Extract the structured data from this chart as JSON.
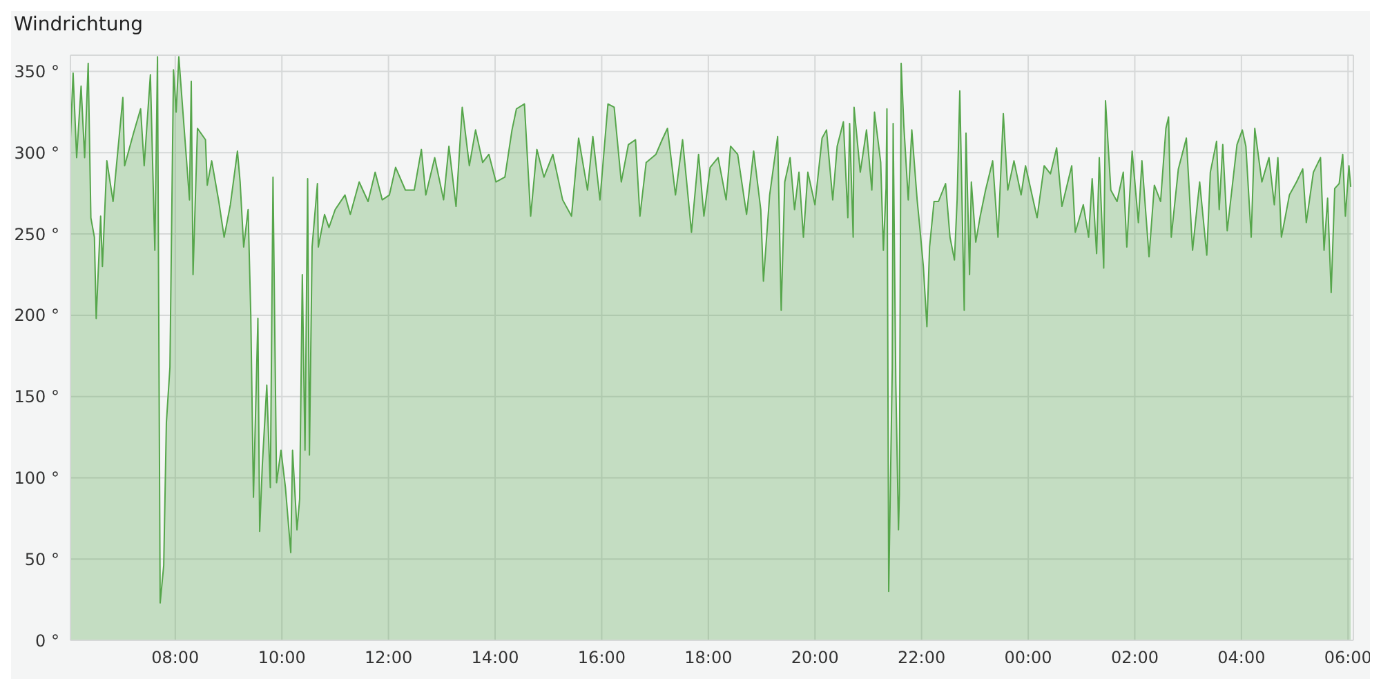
{
  "chart_data": {
    "type": "area",
    "title": "Windrichtung",
    "color": "#56a64b",
    "grid": true,
    "xlim": [
      "2000-01-01T06:02",
      "2000-01-02T06:06"
    ],
    "xticks": [
      {
        "value": "2000-01-01T08:00",
        "label": "08:00"
      },
      {
        "value": "2000-01-01T10:00",
        "label": "10:00"
      },
      {
        "value": "2000-01-01T12:00",
        "label": "12:00"
      },
      {
        "value": "2000-01-01T14:00",
        "label": "14:00"
      },
      {
        "value": "2000-01-01T16:00",
        "label": "16:00"
      },
      {
        "value": "2000-01-01T18:00",
        "label": "18:00"
      },
      {
        "value": "2000-01-01T20:00",
        "label": "20:00"
      },
      {
        "value": "2000-01-01T22:00",
        "label": "22:00"
      },
      {
        "value": "2000-01-02T00:00",
        "label": "00:00"
      },
      {
        "value": "2000-01-02T02:00",
        "label": "02:00"
      },
      {
        "value": "2000-01-02T04:00",
        "label": "04:00"
      },
      {
        "value": "2000-01-02T06:00",
        "label": "06:00"
      }
    ],
    "ylim": [
      0,
      360
    ],
    "yticks": [
      {
        "value": 0,
        "label": "0 °"
      },
      {
        "value": 50,
        "label": "50 °"
      },
      {
        "value": 100,
        "label": "100 °"
      },
      {
        "value": 150,
        "label": "150 °"
      },
      {
        "value": 200,
        "label": "200 °"
      },
      {
        "value": 250,
        "label": "250 °"
      },
      {
        "value": 300,
        "label": "300 °"
      },
      {
        "value": 350,
        "label": "350 °"
      }
    ],
    "x": [
      "2000-01-01T06:02",
      "2000-01-01T06:05",
      "2000-01-01T06:09",
      "2000-01-01T06:14",
      "2000-01-01T06:18",
      "2000-01-01T06:22",
      "2000-01-01T06:25",
      "2000-01-01T06:29",
      "2000-01-01T06:31",
      "2000-01-01T06:36",
      "2000-01-01T06:38",
      "2000-01-01T06:43",
      "2000-01-01T06:50",
      "2000-01-01T07:01",
      "2000-01-01T07:03",
      "2000-01-01T07:13",
      "2000-01-01T07:21",
      "2000-01-01T07:25",
      "2000-01-01T07:32",
      "2000-01-01T07:37",
      "2000-01-01T07:40",
      "2000-01-01T07:43",
      "2000-01-01T07:47",
      "2000-01-01T07:50",
      "2000-01-01T07:54",
      "2000-01-01T07:58",
      "2000-01-01T08:01",
      "2000-01-01T08:04",
      "2000-01-01T08:10",
      "2000-01-01T08:16",
      "2000-01-01T08:18",
      "2000-01-01T08:20",
      "2000-01-01T08:25",
      "2000-01-01T08:34",
      "2000-01-01T08:36",
      "2000-01-01T08:41",
      "2000-01-01T08:49",
      "2000-01-01T08:55",
      "2000-01-01T09:02",
      "2000-01-01T09:10",
      "2000-01-01T09:13",
      "2000-01-01T09:17",
      "2000-01-01T09:22",
      "2000-01-01T09:25",
      "2000-01-01T09:28",
      "2000-01-01T09:33",
      "2000-01-01T09:35",
      "2000-01-01T09:38",
      "2000-01-01T09:43",
      "2000-01-01T09:47",
      "2000-01-01T09:50",
      "2000-01-01T09:54",
      "2000-01-01T09:59",
      "2000-01-01T10:04",
      "2000-01-01T10:10",
      "2000-01-01T10:12",
      "2000-01-01T10:17",
      "2000-01-01T10:20",
      "2000-01-01T10:23",
      "2000-01-01T10:26",
      "2000-01-01T10:29",
      "2000-01-01T10:31",
      "2000-01-01T10:34",
      "2000-01-01T10:40",
      "2000-01-01T10:41",
      "2000-01-01T10:48",
      "2000-01-01T10:53",
      "2000-01-01T11:00",
      "2000-01-01T11:11",
      "2000-01-01T11:17",
      "2000-01-01T11:27",
      "2000-01-01T11:37",
      "2000-01-01T11:45",
      "2000-01-01T11:53",
      "2000-01-01T12:01",
      "2000-01-01T12:08",
      "2000-01-01T12:19",
      "2000-01-01T12:29",
      "2000-01-01T12:37",
      "2000-01-01T12:42",
      "2000-01-01T12:52",
      "2000-01-01T13:02",
      "2000-01-01T13:08",
      "2000-01-01T13:16",
      "2000-01-01T13:23",
      "2000-01-01T13:31",
      "2000-01-01T13:38",
      "2000-01-01T13:46",
      "2000-01-01T13:53",
      "2000-01-01T14:01",
      "2000-01-01T14:11",
      "2000-01-01T14:19",
      "2000-01-01T14:24",
      "2000-01-01T14:33",
      "2000-01-01T14:40",
      "2000-01-01T14:47",
      "2000-01-01T14:55",
      "2000-01-01T15:05",
      "2000-01-01T15:16",
      "2000-01-01T15:26",
      "2000-01-01T15:34",
      "2000-01-01T15:44",
      "2000-01-01T15:50",
      "2000-01-01T15:58",
      "2000-01-01T16:07",
      "2000-01-01T16:14",
      "2000-01-01T16:22",
      "2000-01-01T16:30",
      "2000-01-01T16:38",
      "2000-01-01T16:43",
      "2000-01-01T16:50",
      "2000-01-01T17:01",
      "2000-01-01T17:08",
      "2000-01-01T17:14",
      "2000-01-01T17:23",
      "2000-01-01T17:31",
      "2000-01-01T17:37",
      "2000-01-01T17:41",
      "2000-01-01T17:49",
      "2000-01-01T17:55",
      "2000-01-01T18:02",
      "2000-01-01T18:11",
      "2000-01-01T18:20",
      "2000-01-01T18:25",
      "2000-01-01T18:33",
      "2000-01-01T18:43",
      "2000-01-01T18:51",
      "2000-01-01T18:59",
      "2000-01-01T19:02",
      "2000-01-01T19:09",
      "2000-01-01T19:18",
      "2000-01-01T19:22",
      "2000-01-01T19:26",
      "2000-01-01T19:32",
      "2000-01-01T19:37",
      "2000-01-01T19:42",
      "2000-01-01T19:47",
      "2000-01-01T19:52",
      "2000-01-01T20:00",
      "2000-01-01T20:08",
      "2000-01-01T20:13",
      "2000-01-01T20:20",
      "2000-01-01T20:25",
      "2000-01-01T20:32",
      "2000-01-01T20:37",
      "2000-01-01T20:39",
      "2000-01-01T20:43",
      "2000-01-01T20:44",
      "2000-01-01T20:51",
      "2000-01-01T20:58",
      "2000-01-01T21:04",
      "2000-01-01T21:07",
      "2000-01-01T21:14",
      "2000-01-01T21:17",
      "2000-01-01T21:20",
      "2000-01-01T21:21",
      "2000-01-01T21:23",
      "2000-01-01T21:27",
      "2000-01-01T21:28",
      "2000-01-01T21:31",
      "2000-01-01T21:34",
      "2000-01-01T21:35",
      "2000-01-01T21:37",
      "2000-01-01T21:40",
      "2000-01-01T21:45",
      "2000-01-01T21:49",
      "2000-01-01T21:55",
      "2000-01-01T21:58",
      "2000-01-01T22:02",
      "2000-01-01T22:06",
      "2000-01-01T22:09",
      "2000-01-01T22:14",
      "2000-01-01T22:19",
      "2000-01-01T22:27",
      "2000-01-01T22:32",
      "2000-01-01T22:37",
      "2000-01-01T22:40",
      "2000-01-01T22:43",
      "2000-01-01T22:48",
      "2000-01-01T22:50",
      "2000-01-01T22:54",
      "2000-01-01T22:56",
      "2000-01-01T23:01",
      "2000-01-01T23:06",
      "2000-01-01T23:12",
      "2000-01-01T23:20",
      "2000-01-01T23:26",
      "2000-01-01T23:32",
      "2000-01-01T23:37",
      "2000-01-01T23:44",
      "2000-01-01T23:52",
      "2000-01-01T23:57",
      "2000-01-02T00:10",
      "2000-01-02T00:18",
      "2000-01-02T00:25",
      "2000-01-02T00:32",
      "2000-01-02T00:38",
      "2000-01-02T00:49",
      "2000-01-02T00:53",
      "2000-01-02T01:02",
      "2000-01-02T01:08",
      "2000-01-02T01:12",
      "2000-01-02T01:17",
      "2000-01-02T01:20",
      "2000-01-02T01:25",
      "2000-01-02T01:27",
      "2000-01-02T01:33",
      "2000-01-02T01:40",
      "2000-01-02T01:47",
      "2000-01-02T01:51",
      "2000-01-02T01:57",
      "2000-01-02T02:04",
      "2000-01-02T02:08",
      "2000-01-02T02:16",
      "2000-01-02T02:22",
      "2000-01-02T02:29",
      "2000-01-02T02:35",
      "2000-01-02T02:38",
      "2000-01-02T02:41",
      "2000-01-02T02:49",
      "2000-01-02T02:58",
      "2000-01-02T03:05",
      "2000-01-02T03:13",
      "2000-01-02T03:21",
      "2000-01-02T03:25",
      "2000-01-02T03:32",
      "2000-01-02T03:35",
      "2000-01-02T03:39",
      "2000-01-02T03:44",
      "2000-01-02T03:55",
      "2000-01-02T04:01",
      "2000-01-02T04:05",
      "2000-01-02T04:11",
      "2000-01-02T04:15",
      "2000-01-02T04:23",
      "2000-01-02T04:31",
      "2000-01-02T04:37",
      "2000-01-02T04:41",
      "2000-01-02T04:45",
      "2000-01-02T04:54",
      "2000-01-02T05:02",
      "2000-01-02T05:09",
      "2000-01-02T05:13",
      "2000-01-02T05:21",
      "2000-01-02T05:29",
      "2000-01-02T05:33",
      "2000-01-02T05:37",
      "2000-01-02T05:41",
      "2000-01-02T05:45",
      "2000-01-02T05:50",
      "2000-01-02T05:54",
      "2000-01-02T05:57",
      "2000-01-02T06:01",
      "2000-01-02T06:03"
    ],
    "values": [
      309,
      349,
      297,
      341,
      297,
      355,
      260,
      248,
      198,
      261,
      230,
      295,
      270,
      334,
      292,
      312,
      327,
      292,
      348,
      240,
      359,
      23,
      46,
      134,
      168,
      351,
      325,
      359,
      315,
      271,
      344,
      225,
      315,
      308,
      280,
      295,
      270,
      248,
      268,
      301,
      282,
      242,
      265,
      200,
      88,
      198,
      67,
      108,
      157,
      94,
      285,
      97,
      117,
      94,
      54,
      117,
      68,
      87,
      225,
      117,
      284,
      114,
      242,
      281,
      242,
      262,
      254,
      265,
      274,
      262,
      282,
      270,
      288,
      271,
      274,
      291,
      277,
      277,
      302,
      274,
      297,
      271,
      304,
      267,
      328,
      292,
      314,
      294,
      299,
      282,
      285,
      314,
      327,
      330,
      261,
      302,
      285,
      299,
      271,
      261,
      309,
      277,
      310,
      271,
      330,
      328,
      282,
      305,
      308,
      261,
      294,
      299,
      308,
      315,
      274,
      308,
      274,
      251,
      299,
      261,
      291,
      297,
      271,
      304,
      299,
      262,
      301,
      265,
      221,
      274,
      310,
      203,
      282,
      297,
      265,
      288,
      248,
      288,
      268,
      309,
      314,
      271,
      304,
      319,
      260,
      318,
      248,
      328,
      288,
      314,
      277,
      325,
      294,
      240,
      278,
      327,
      30,
      168,
      318,
      158,
      68,
      90,
      355,
      317,
      271,
      314,
      271,
      254,
      230,
      193,
      242,
      270,
      270,
      281,
      248,
      234,
      271,
      338,
      203,
      312,
      225,
      282,
      245,
      261,
      277,
      295,
      248,
      324,
      277,
      295,
      274,
      292,
      260,
      292,
      287,
      303,
      267,
      292,
      251,
      268,
      248,
      284,
      238,
      297,
      229,
      332,
      277,
      270,
      288,
      242,
      301,
      257,
      295,
      236,
      280,
      270,
      315,
      322,
      248,
      290,
      309,
      240,
      282,
      237,
      288,
      307,
      265,
      305,
      252,
      305,
      314,
      304,
      248,
      315,
      282,
      297,
      268,
      297,
      248,
      274,
      282,
      290,
      257,
      288,
      297,
      240,
      272,
      214,
      278,
      281,
      299,
      261,
      292,
      279
    ]
  }
}
